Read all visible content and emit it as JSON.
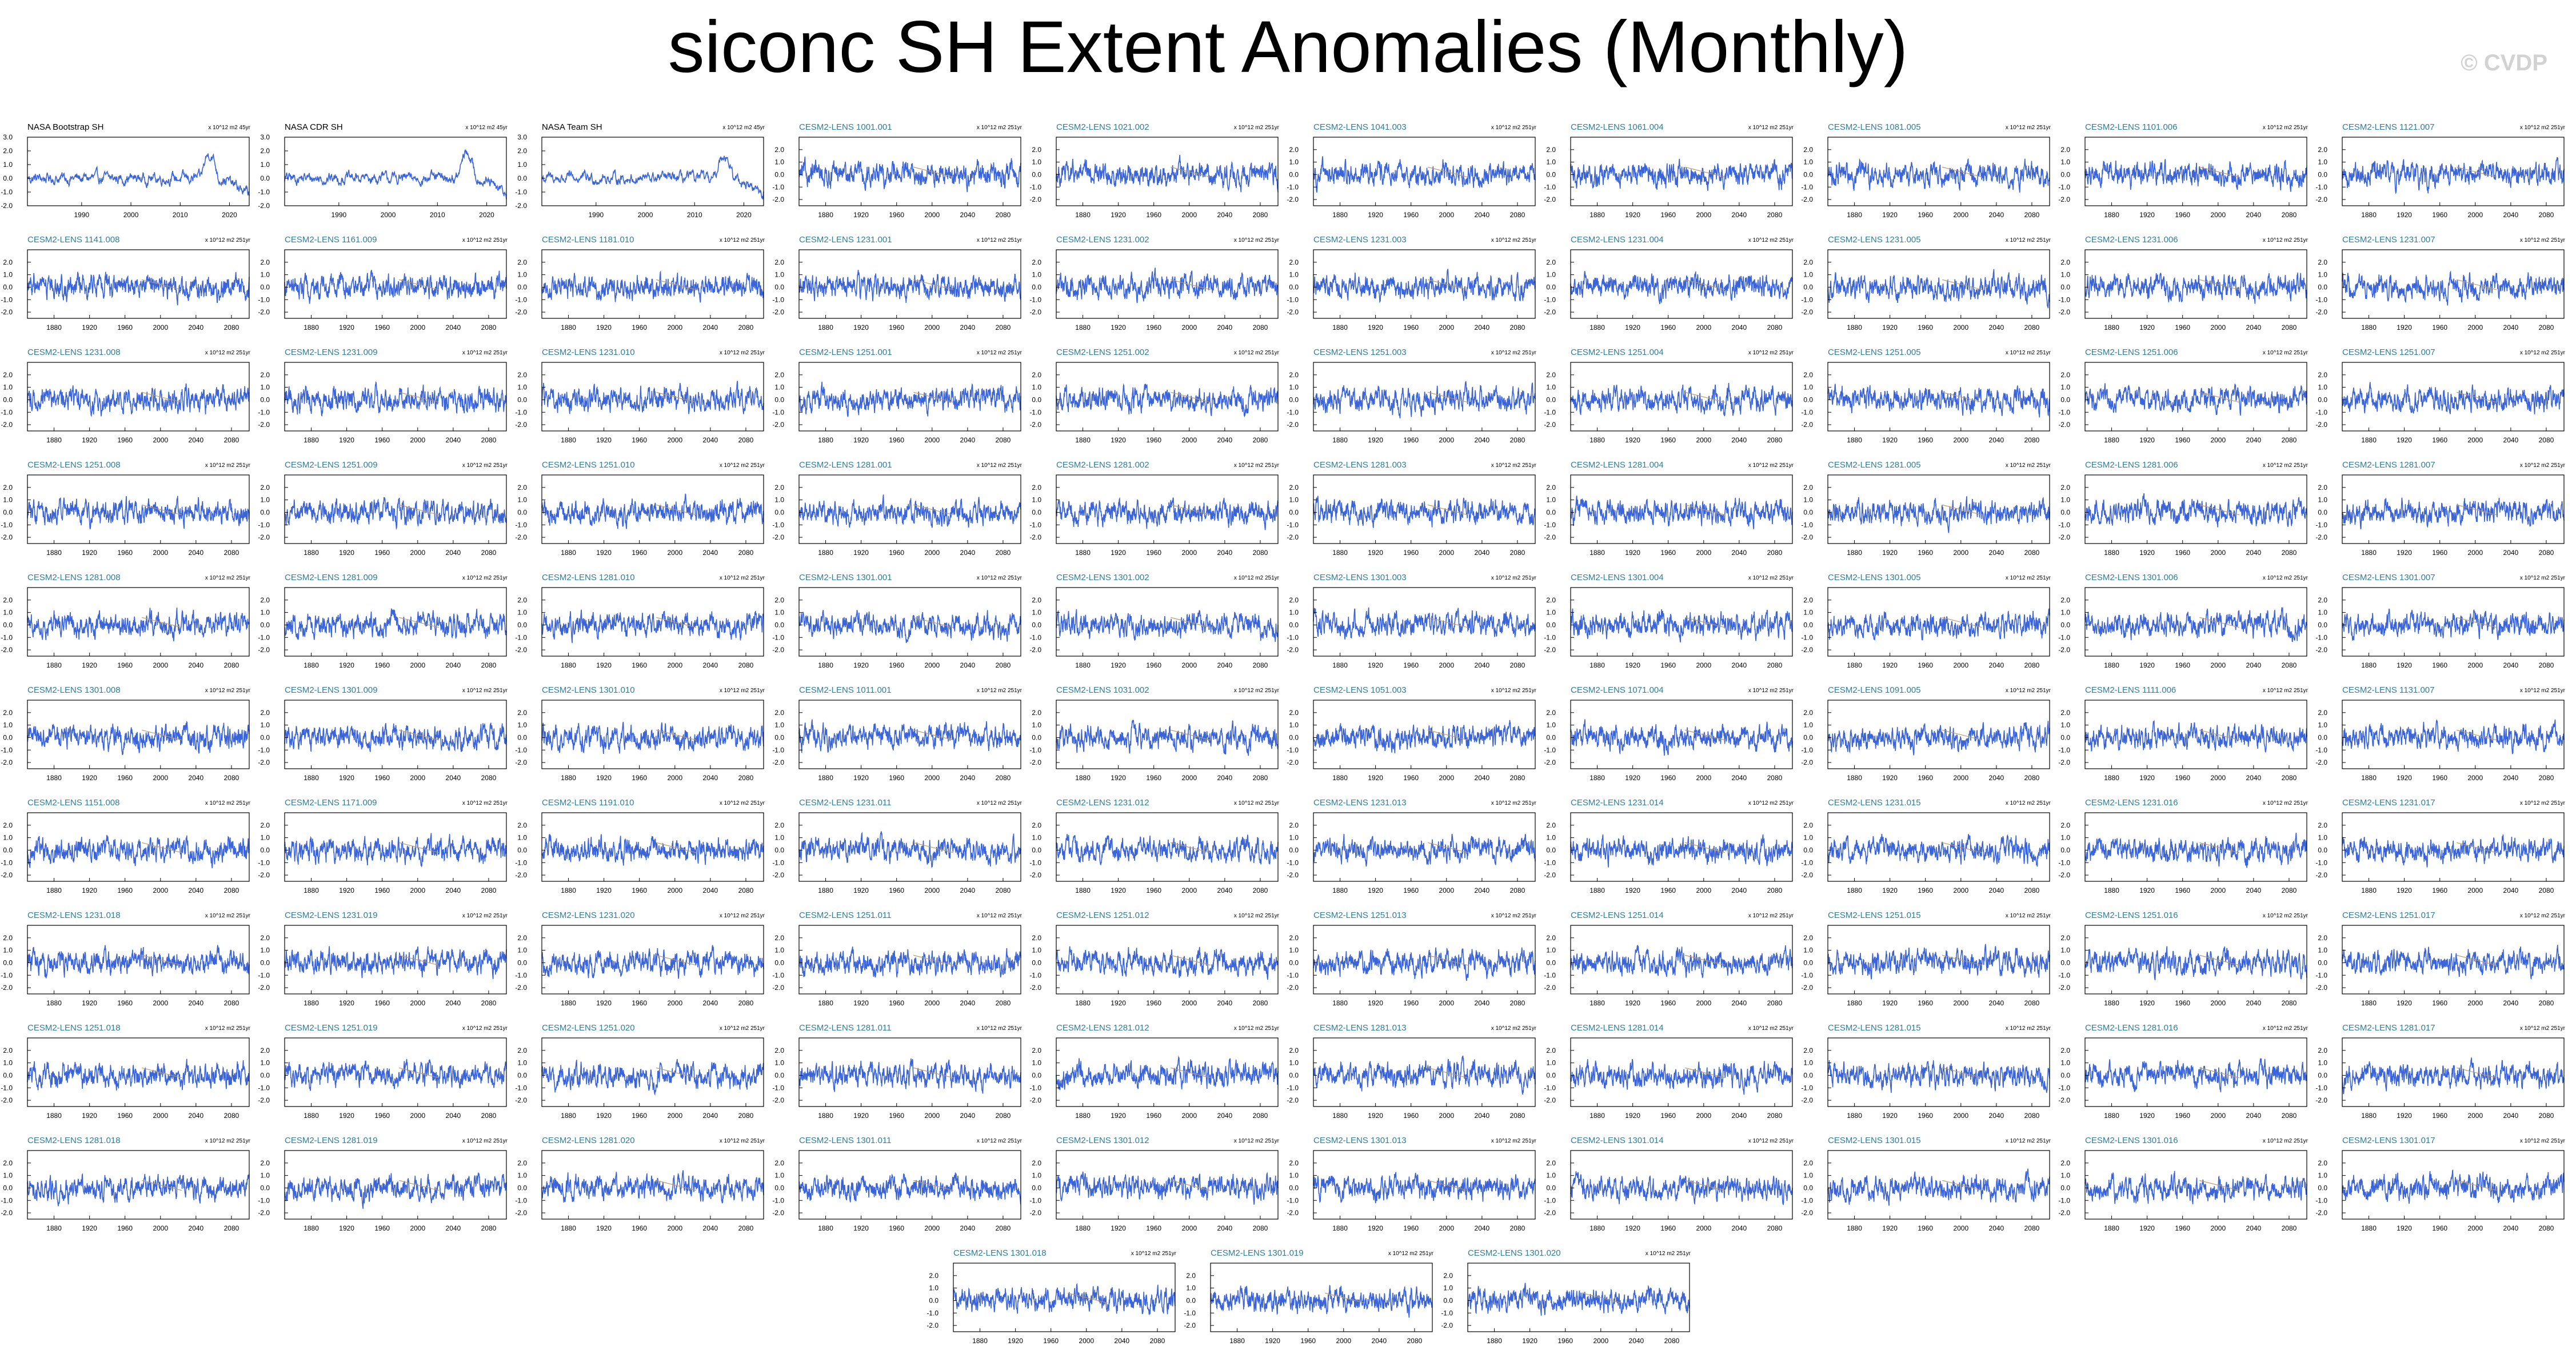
{
  "title": "siconc SH Extent Anomalies (Monthly)",
  "watermark": "© CVDP",
  "colors": {
    "line": "#3a64d8",
    "axis": "#000000",
    "obs_title": "#000000",
    "ens_title": "#2e7d9a",
    "trend": "#b59b6a"
  },
  "chart_data": [
    {
      "type": "line",
      "title": "NASA Bootstrap SH",
      "units": "x 10^12 m2 45yr",
      "kind": "obs",
      "x_range": [
        1979,
        2024
      ],
      "x_ticks": [
        1990,
        2000,
        2010,
        2020
      ],
      "x_tick_labels": [
        "1990",
        "2000",
        "2010",
        "2020"
      ],
      "y_range": [
        -2.0,
        3.0
      ],
      "y_ticks": [
        3.0,
        2.0,
        1.0,
        0.0,
        -1.0,
        -2.0
      ],
      "y_tick_labels": [
        "3.0",
        "2.0",
        "1.0",
        "0.0",
        "-1.0",
        "-2.0"
      ]
    },
    {
      "type": "line",
      "title": "NASA CDR SH",
      "units": "x 10^12 m2 45yr",
      "kind": "obs",
      "x_range": [
        1979,
        2024
      ],
      "x_ticks": [
        1990,
        2000,
        2010,
        2020
      ],
      "x_tick_labels": [
        "1990",
        "2000",
        "2010",
        "2020"
      ],
      "y_range": [
        -2.0,
        3.0
      ],
      "y_ticks": [
        3.0,
        2.0,
        1.0,
        0.0,
        -1.0,
        -2.0
      ],
      "y_tick_labels": [
        "3.0",
        "2.0",
        "1.0",
        "0.0",
        "-1.0",
        "-2.0"
      ]
    },
    {
      "type": "line",
      "title": "NASA Team SH",
      "units": "x 10^12 m2 45yr",
      "kind": "obs",
      "x_range": [
        1979,
        2024
      ],
      "x_ticks": [
        1990,
        2000,
        2010,
        2020
      ],
      "x_tick_labels": [
        "1990",
        "2000",
        "2010",
        "2020"
      ],
      "y_range": [
        -2.0,
        3.0
      ],
      "y_ticks": [
        3.0,
        2.0,
        1.0,
        0.0,
        -1.0,
        -2.0
      ],
      "y_tick_labels": [
        "3.0",
        "2.0",
        "1.0",
        "0.0",
        "-1.0",
        "-2.0"
      ]
    },
    {
      "title": "CESM2-LENS 1001.001"
    },
    {
      "title": "CESM2-LENS 1021.002"
    },
    {
      "title": "CESM2-LENS 1041.003"
    },
    {
      "title": "CESM2-LENS 1061.004"
    },
    {
      "title": "CESM2-LENS 1081.005"
    },
    {
      "title": "CESM2-LENS 1101.006"
    },
    {
      "title": "CESM2-LENS 1121.007"
    },
    {
      "title": "CESM2-LENS 1141.008"
    },
    {
      "title": "CESM2-LENS 1161.009"
    },
    {
      "title": "CESM2-LENS 1181.010"
    },
    {
      "title": "CESM2-LENS 1231.001"
    },
    {
      "title": "CESM2-LENS 1231.002"
    },
    {
      "title": "CESM2-LENS 1231.003"
    },
    {
      "title": "CESM2-LENS 1231.004"
    },
    {
      "title": "CESM2-LENS 1231.005"
    },
    {
      "title": "CESM2-LENS 1231.006"
    },
    {
      "title": "CESM2-LENS 1231.007"
    },
    {
      "title": "CESM2-LENS 1231.008"
    },
    {
      "title": "CESM2-LENS 1231.009"
    },
    {
      "title": "CESM2-LENS 1231.010"
    },
    {
      "title": "CESM2-LENS 1251.001"
    },
    {
      "title": "CESM2-LENS 1251.002"
    },
    {
      "title": "CESM2-LENS 1251.003"
    },
    {
      "title": "CESM2-LENS 1251.004"
    },
    {
      "title": "CESM2-LENS 1251.005"
    },
    {
      "title": "CESM2-LENS 1251.006"
    },
    {
      "title": "CESM2-LENS 1251.007"
    },
    {
      "title": "CESM2-LENS 1251.008"
    },
    {
      "title": "CESM2-LENS 1251.009"
    },
    {
      "title": "CESM2-LENS 1251.010"
    },
    {
      "title": "CESM2-LENS 1281.001"
    },
    {
      "title": "CESM2-LENS 1281.002"
    },
    {
      "title": "CESM2-LENS 1281.003"
    },
    {
      "title": "CESM2-LENS 1281.004"
    },
    {
      "title": "CESM2-LENS 1281.005"
    },
    {
      "title": "CESM2-LENS 1281.006"
    },
    {
      "title": "CESM2-LENS 1281.007"
    },
    {
      "title": "CESM2-LENS 1281.008"
    },
    {
      "title": "CESM2-LENS 1281.009"
    },
    {
      "title": "CESM2-LENS 1281.010"
    },
    {
      "title": "CESM2-LENS 1301.001"
    },
    {
      "title": "CESM2-LENS 1301.002"
    },
    {
      "title": "CESM2-LENS 1301.003"
    },
    {
      "title": "CESM2-LENS 1301.004"
    },
    {
      "title": "CESM2-LENS 1301.005"
    },
    {
      "title": "CESM2-LENS 1301.006"
    },
    {
      "title": "CESM2-LENS 1301.007"
    },
    {
      "title": "CESM2-LENS 1301.008"
    },
    {
      "title": "CESM2-LENS 1301.009"
    },
    {
      "title": "CESM2-LENS 1301.010"
    },
    {
      "title": "CESM2-LENS 1011.001"
    },
    {
      "title": "CESM2-LENS 1031.002"
    },
    {
      "title": "CESM2-LENS 1051.003"
    },
    {
      "title": "CESM2-LENS 1071.004"
    },
    {
      "title": "CESM2-LENS 1091.005"
    },
    {
      "title": "CESM2-LENS 1111.006"
    },
    {
      "title": "CESM2-LENS 1131.007"
    },
    {
      "title": "CESM2-LENS 1151.008"
    },
    {
      "title": "CESM2-LENS 1171.009"
    },
    {
      "title": "CESM2-LENS 1191.010"
    },
    {
      "title": "CESM2-LENS 1231.011"
    },
    {
      "title": "CESM2-LENS 1231.012"
    },
    {
      "title": "CESM2-LENS 1231.013"
    },
    {
      "title": "CESM2-LENS 1231.014"
    },
    {
      "title": "CESM2-LENS 1231.015"
    },
    {
      "title": "CESM2-LENS 1231.016"
    },
    {
      "title": "CESM2-LENS 1231.017"
    },
    {
      "title": "CESM2-LENS 1231.018"
    },
    {
      "title": "CESM2-LENS 1231.019"
    },
    {
      "title": "CESM2-LENS 1231.020"
    },
    {
      "title": "CESM2-LENS 1251.011"
    },
    {
      "title": "CESM2-LENS 1251.012"
    },
    {
      "title": "CESM2-LENS 1251.013"
    },
    {
      "title": "CESM2-LENS 1251.014"
    },
    {
      "title": "CESM2-LENS 1251.015"
    },
    {
      "title": "CESM2-LENS 1251.016"
    },
    {
      "title": "CESM2-LENS 1251.017"
    },
    {
      "title": "CESM2-LENS 1251.018"
    },
    {
      "title": "CESM2-LENS 1251.019"
    },
    {
      "title": "CESM2-LENS 1251.020"
    },
    {
      "title": "CESM2-LENS 1281.011"
    },
    {
      "title": "CESM2-LENS 1281.012"
    },
    {
      "title": "CESM2-LENS 1281.013"
    },
    {
      "title": "CESM2-LENS 1281.014"
    },
    {
      "title": "CESM2-LENS 1281.015"
    },
    {
      "title": "CESM2-LENS 1281.016"
    },
    {
      "title": "CESM2-LENS 1281.017"
    },
    {
      "title": "CESM2-LENS 1281.018"
    },
    {
      "title": "CESM2-LENS 1281.019"
    },
    {
      "title": "CESM2-LENS 1281.020"
    },
    {
      "title": "CESM2-LENS 1301.011"
    },
    {
      "title": "CESM2-LENS 1301.012"
    },
    {
      "title": "CESM2-LENS 1301.013"
    },
    {
      "title": "CESM2-LENS 1301.014"
    },
    {
      "title": "CESM2-LENS 1301.015"
    },
    {
      "title": "CESM2-LENS 1301.016"
    },
    {
      "title": "CESM2-LENS 1301.017"
    },
    {
      "title": "CESM2-LENS 1301.018"
    },
    {
      "title": "CESM2-LENS 1301.019"
    },
    {
      "title": "CESM2-LENS 1301.020"
    }
  ],
  "ensemble_defaults": {
    "type": "line",
    "units": "x 10^12 m2 251yr",
    "kind": "ens",
    "x_range": [
      1850,
      2100
    ],
    "x_ticks": [
      1880,
      1920,
      1960,
      2000,
      2040,
      2080
    ],
    "x_tick_labels": [
      "1880",
      "1920",
      "1960",
      "2000",
      "2040",
      "2080"
    ],
    "y_range": [
      -2.5,
      3.0
    ],
    "y_ticks": [
      2.0,
      1.0,
      0.0,
      -1.0,
      -2.0
    ],
    "y_tick_labels": [
      "2.0",
      "1.0",
      "0.0",
      "-1.0",
      "-2.0"
    ]
  }
}
